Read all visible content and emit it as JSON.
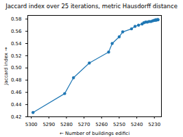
{
  "chart_data": {
    "type": "line",
    "title": "Jaccard index over 25 iterations, metric Hausdorff distance",
    "x_label": "Number of buildings edifici",
    "y_label": "Jaccard index",
    "x": [
      5299,
      5281,
      5276,
      5267,
      5256,
      5254,
      5250,
      5248,
      5243,
      5241,
      5239,
      5237,
      5236,
      5235,
      5234,
      5233,
      5232,
      5231,
      5230,
      5230,
      5229,
      5229,
      5228,
      5228,
      5228
    ],
    "series": [
      {
        "name": "Jaccard index",
        "color": "#1f77b4",
        "marker": "o",
        "values": [
          0.427,
          0.458,
          0.484,
          0.508,
          0.526,
          0.54,
          0.551,
          0.559,
          0.564,
          0.568,
          0.57,
          0.572,
          0.574,
          0.575,
          0.575,
          0.576,
          0.576,
          0.577,
          0.578,
          0.578,
          0.578,
          0.579,
          0.579,
          0.579,
          0.579
        ]
      }
    ],
    "xlim": [
      5302,
      5226
    ],
    "xticks": [
      5300,
      5290,
      5280,
      5270,
      5260,
      5250,
      5240,
      5230
    ],
    "ylim": [
      0.42,
      0.586
    ],
    "yticks": [
      0.42,
      0.44,
      0.46,
      0.48,
      {
        "value": 0.5,
        "label": "0.50"
      },
      0.52,
      0.54,
      0.56,
      0.58
    ],
    "grid": false
  }
}
